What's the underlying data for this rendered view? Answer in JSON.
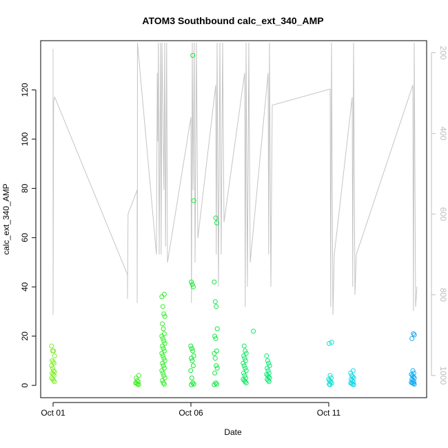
{
  "chart_data": {
    "type": "scatter",
    "title": "ATOM3 Southbound calc_ext_340_AMP",
    "xlabel": "Date",
    "ylabel": "calc_ext_340_AMP",
    "x_ticks": [
      {
        "label": "Oct 01",
        "day": 1
      },
      {
        "label": "Oct 06",
        "day": 6
      },
      {
        "label": "Oct 11",
        "day": 11
      }
    ],
    "xlim_days": [
      0.55,
      14.55
    ],
    "ylim": [
      -5,
      140
    ],
    "y_ticks": [
      0,
      20,
      40,
      60,
      80,
      100,
      120
    ],
    "y2_ticks": [
      200,
      400,
      600,
      800,
      1000
    ],
    "y2lim": [
      1055,
      170
    ],
    "y2_color": "#bdbdbd",
    "depth_color": "#c4c4c4",
    "grid": false,
    "legend": "none",
    "clusters": [
      {
        "day": 1.0,
        "color": "#7df028",
        "values": [
          16,
          14,
          14,
          12,
          10,
          9.5,
          9,
          8,
          7,
          6,
          5.5,
          5,
          4.5,
          4,
          3,
          2.5,
          2,
          1.5
        ]
      },
      {
        "day": 4.05,
        "color": "#3cf020",
        "values": [
          4,
          3,
          2,
          1.5,
          1,
          0.8,
          0.5,
          0.3
        ]
      },
      {
        "day": 5.0,
        "color": "#2af020",
        "values": [
          37,
          36,
          32,
          29,
          28,
          25,
          23,
          21,
          20,
          19,
          18,
          17,
          16,
          15,
          14,
          13,
          12,
          11,
          10,
          9,
          8,
          7,
          6,
          5,
          4,
          3,
          2,
          1,
          0.5
        ]
      },
      {
        "day": 6.05,
        "color": "#10e830",
        "values": [
          134,
          75,
          42,
          41,
          40,
          16,
          15,
          14,
          12,
          11,
          10,
          8,
          6,
          3,
          1,
          0.5,
          0.3
        ]
      },
      {
        "day": 6.9,
        "color": "#10e840",
        "values": [
          68,
          66,
          42,
          34,
          32,
          23,
          20,
          19,
          14,
          13,
          11,
          8,
          7,
          5,
          1,
          0.5,
          0.3
        ]
      },
      {
        "day": 7.95,
        "color": "#10e860",
        "values": [
          16,
          14,
          13,
          12,
          11,
          10,
          9,
          8,
          7,
          6,
          5,
          4,
          3,
          2.5,
          2,
          1.5,
          1
        ]
      },
      {
        "day": 8.3,
        "color": "#10e870",
        "values": [
          22
        ]
      },
      {
        "day": 8.8,
        "color": "#10e878",
        "values": [
          12,
          10,
          9,
          8,
          7,
          6,
          5,
          4.5,
          4,
          3.5,
          3,
          2.5,
          2,
          1.5
        ]
      },
      {
        "day": 11.05,
        "color": "#10e0d0",
        "values": [
          17.5,
          17,
          4,
          3,
          2.5,
          2,
          1.5,
          1,
          0.5,
          0.3
        ]
      },
      {
        "day": 11.85,
        "color": "#10d8e8",
        "values": [
          6,
          5,
          4,
          3.5,
          3,
          2.5,
          2,
          1.5,
          1,
          0.8,
          0.5,
          0.3
        ]
      },
      {
        "day": 14.05,
        "color": "#10a8f0",
        "values": [
          21,
          20.5,
          19,
          6,
          5,
          4.5,
          4,
          3.5,
          3,
          2.5,
          2,
          1.5,
          1.2,
          1,
          0.8,
          0.5
        ]
      }
    ],
    "depth_profile": [
      [
        1.0,
        190
      ],
      [
        1.0,
        850
      ],
      [
        1.02,
        320
      ],
      [
        1.06,
        310
      ],
      [
        3.7,
        750
      ],
      [
        3.7,
        810
      ],
      [
        3.72,
        600
      ],
      [
        4.05,
        540
      ],
      [
        4.05,
        820
      ],
      [
        4.06,
        590
      ],
      [
        4.06,
        175
      ],
      [
        4.75,
        700
      ],
      [
        4.78,
        250
      ],
      [
        4.8,
        420
      ],
      [
        4.82,
        175
      ],
      [
        4.85,
        700
      ],
      [
        4.9,
        175
      ],
      [
        4.92,
        700
      ],
      [
        4.95,
        175
      ],
      [
        5.02,
        540
      ],
      [
        5.05,
        175
      ],
      [
        5.08,
        680
      ],
      [
        5.12,
        175
      ],
      [
        5.15,
        720
      ],
      [
        6.0,
        360
      ],
      [
        6.02,
        820
      ],
      [
        6.05,
        175
      ],
      [
        6.08,
        540
      ],
      [
        6.12,
        175
      ],
      [
        6.15,
        720
      ],
      [
        6.2,
        175
      ],
      [
        6.25,
        660
      ],
      [
        6.9,
        280
      ],
      [
        6.92,
        700
      ],
      [
        6.95,
        175
      ],
      [
        7.0,
        780
      ],
      [
        7.05,
        175
      ],
      [
        7.1,
        700
      ],
      [
        7.15,
        175
      ],
      [
        7.2,
        620
      ],
      [
        7.95,
        250
      ],
      [
        7.97,
        830
      ],
      [
        8.0,
        175
      ],
      [
        8.05,
        780
      ],
      [
        8.1,
        175
      ],
      [
        8.15,
        720
      ],
      [
        8.8,
        250
      ],
      [
        8.82,
        700
      ],
      [
        8.85,
        175
      ],
      [
        8.9,
        780
      ],
      [
        8.95,
        330
      ],
      [
        11.05,
        290
      ],
      [
        11.07,
        830
      ],
      [
        11.1,
        175
      ],
      [
        11.15,
        850
      ],
      [
        11.2,
        700
      ],
      [
        11.85,
        310
      ],
      [
        11.87,
        780
      ],
      [
        11.9,
        175
      ],
      [
        11.95,
        800
      ],
      [
        12.0,
        700
      ],
      [
        14.05,
        280
      ],
      [
        14.07,
        840
      ],
      [
        14.1,
        175
      ],
      [
        14.15,
        830
      ],
      [
        14.2,
        780
      ]
    ]
  }
}
